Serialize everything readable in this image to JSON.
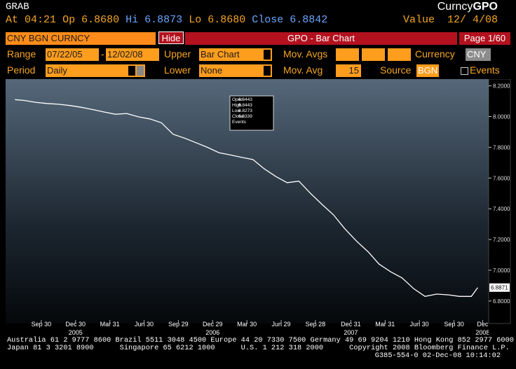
{
  "header": {
    "ticker": "GRAB",
    "market": "Curncy",
    "function": "GPO"
  },
  "quote": {
    "time_label": "At",
    "time": "04:21",
    "open_label": "Op",
    "open": "6.8680",
    "high_label": "Hi",
    "high": "6.8873",
    "low_label": "Lo",
    "low": "6.8680",
    "close_label": "Close",
    "close": "6.8842",
    "value_label": "Value",
    "value_date": "12/ 4/08"
  },
  "toolbar": {
    "security": "CNY BGN CURNCY",
    "hide": "Hide",
    "title": "GPO - Bar Chart",
    "page": "Page 1/60",
    "range_label": "Range",
    "range_start": "07/22/05",
    "range_sep": "-",
    "range_end": "12/02/08",
    "upper_label": "Upper",
    "upper": "Bar Chart",
    "mov_avgs_label": "Mov. Avgs",
    "currency_label": "Currency",
    "currency": "CNY",
    "period_label": "Period",
    "period": "Daily",
    "lower_label": "Lower",
    "lower": "None",
    "mov_avg_label": "Mov. Avg",
    "mov_avg": "15",
    "source_label": "Source",
    "source": "BGN",
    "events_label": "Events"
  },
  "chart_data": {
    "type": "line",
    "color": "#ffffff",
    "x": [
      "2005-07-22",
      "2005-08",
      "2005-09",
      "2005-10",
      "2005-11",
      "2005-12",
      "2006-01",
      "2006-02",
      "2006-03",
      "2006-04",
      "2006-05",
      "2006-06",
      "2006-07",
      "2006-08",
      "2006-09",
      "2006-10",
      "2006-11",
      "2006-12",
      "2007-01",
      "2007-02",
      "2007-03",
      "2007-04",
      "2007-05",
      "2007-06",
      "2007-07",
      "2007-08",
      "2007-09",
      "2007-10",
      "2007-11",
      "2007-12",
      "2008-01",
      "2008-02",
      "2008-03",
      "2008-04",
      "2008-05",
      "2008-06",
      "2008-07",
      "2008-08",
      "2008-09",
      "2008-10",
      "2008-11",
      "2008-12-02"
    ],
    "values": [
      8.11,
      8.105,
      8.093,
      8.085,
      8.08,
      8.072,
      8.06,
      8.045,
      8.03,
      8.015,
      8.02,
      7.998,
      7.985,
      7.96,
      7.885,
      7.86,
      7.83,
      7.8,
      7.765,
      7.75,
      7.735,
      7.72,
      7.66,
      7.61,
      7.57,
      7.58,
      7.5,
      7.43,
      7.36,
      7.27,
      7.19,
      7.12,
      7.04,
      6.99,
      6.95,
      6.88,
      6.83,
      6.845,
      6.84,
      6.83,
      6.83,
      6.8871
    ],
    "last_price": 6.8871,
    "xlim": [
      "2005-07-01",
      "2008-12-31"
    ],
    "ylim": [
      6.69,
      8.23
    ],
    "yticks": [
      {
        "value": 6.8,
        "label": "6.8000"
      },
      {
        "value": 7,
        "label": "7.0000"
      },
      {
        "value": 7.2,
        "label": "7.2000"
      },
      {
        "value": 7.4,
        "label": "7.4000"
      },
      {
        "value": 7.6,
        "label": "7.6000"
      },
      {
        "value": 7.8,
        "label": "7.8000"
      },
      {
        "value": 8,
        "label": "8.0000"
      },
      {
        "value": 8.2,
        "label": "8.2000"
      }
    ],
    "xticks": [
      {
        "value": "2005-09-30",
        "label": "Sep 30"
      },
      {
        "value": "2005-12-30",
        "label": "Dec 30"
      },
      {
        "value": "2006-03-31",
        "label": "Mar 31"
      },
      {
        "value": "2006-06-30",
        "label": "Jun 30"
      },
      {
        "value": "2006-09-29",
        "label": "Sep 29"
      },
      {
        "value": "2006-12-29",
        "label": "Dec 29"
      },
      {
        "value": "2007-03-30",
        "label": "Mar 30"
      },
      {
        "value": "2007-06-29",
        "label": "Jun 29"
      },
      {
        "value": "2007-09-28",
        "label": "Sep 28"
      },
      {
        "value": "2007-12-31",
        "label": "Dec 31"
      },
      {
        "value": "2008-03-31",
        "label": "Mar 31"
      },
      {
        "value": "2008-06-30",
        "label": "Jun 30"
      },
      {
        "value": "2008-09-30",
        "label": "Sep 30"
      },
      {
        "value": "2008-12",
        "label": "Dec"
      }
    ],
    "year_labels": [
      {
        "value": "2005-12-30",
        "label": "2005"
      },
      {
        "value": "2006-12-29",
        "label": "2006"
      },
      {
        "value": "2007-12-31",
        "label": "2007"
      },
      {
        "value": "2008-12",
        "label": "2008"
      }
    ]
  },
  "tooltip": {
    "open_label": "Open",
    "open": "6.8443",
    "high_label": "High",
    "high": "6.8443",
    "low_label": "Low",
    "low": "6.8273",
    "close_label": "Close",
    "close": "6.8339",
    "events": "Events"
  },
  "footer": {
    "lines": [
      "Australia 61 2 9777 8600 Brazil 5511 3048 4500 Europe 44 20 7330 7500 Germany 49 69 9204 1210 Hong Kong 852 2977 6000",
      "Japan 81 3 3201 8900      Singapore 65 6212 1000      U.S. 1 212 318 2000      Copyright 2008 Bloomberg Finance L.P."
    ],
    "id": "G385-554-0 02-Dec-08 10:14:02"
  }
}
